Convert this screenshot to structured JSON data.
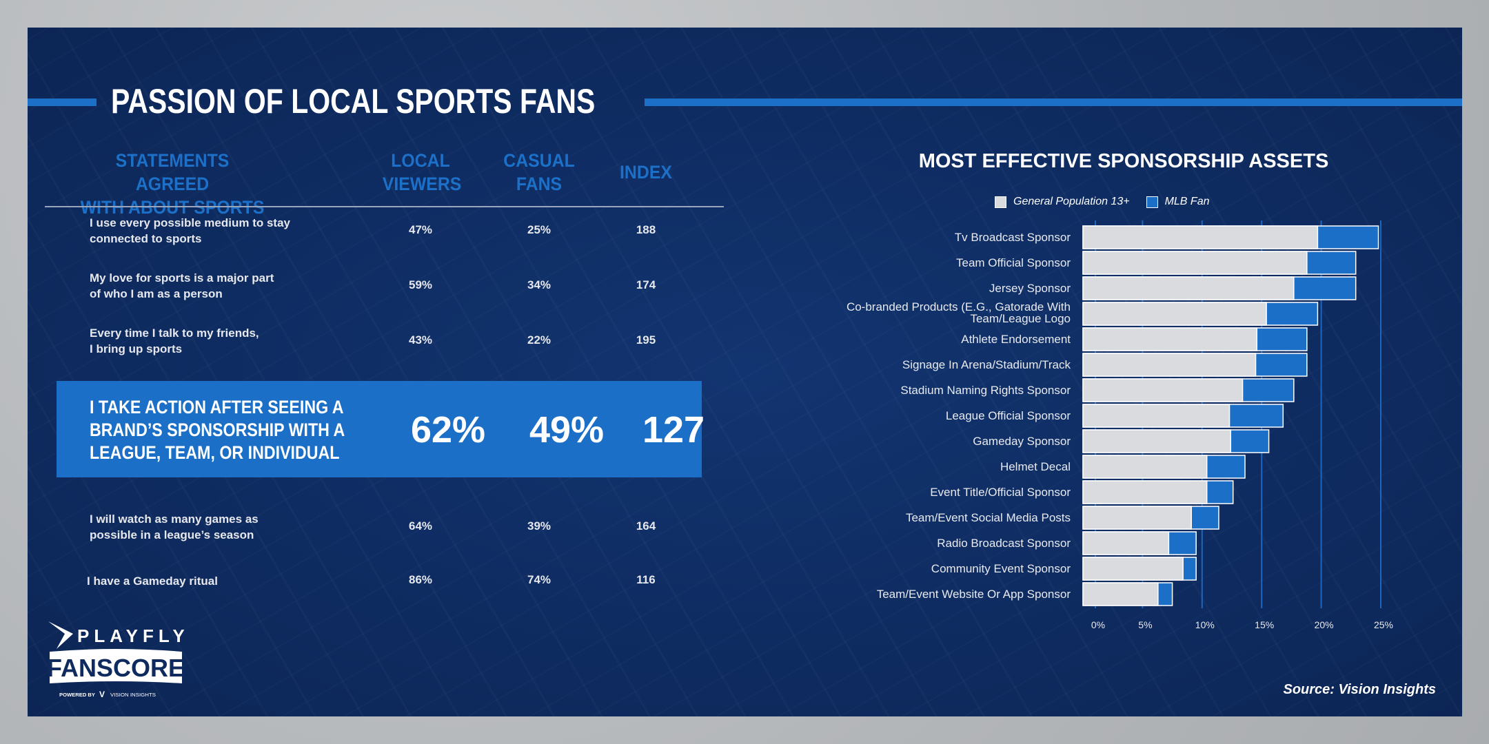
{
  "title": "PASSION OF LOCAL SPORTS FANS",
  "table": {
    "headers": {
      "statement": [
        "STATEMENTS AGREED",
        "WITH ABOUT SPORTS"
      ],
      "local": [
        "LOCAL",
        "VIEWERS"
      ],
      "casual": [
        "CASUAL",
        "FANS"
      ],
      "index": "INDEX"
    },
    "rows": [
      {
        "statement": [
          "I use every possible medium to stay",
          "connected to sports"
        ],
        "local": "47%",
        "casual": "25%",
        "index": "188"
      },
      {
        "statement": [
          "My love for sports is a major part",
          "of who I am as a person"
        ],
        "local": "59%",
        "casual": "34%",
        "index": "174"
      },
      {
        "statement": [
          "Every time I talk to my friends,",
          "I bring up sports"
        ],
        "local": "43%",
        "casual": "22%",
        "index": "195"
      },
      {
        "statement": [
          "I will watch as many games as",
          "possible in a league’s season"
        ],
        "local": "64%",
        "casual": "39%",
        "index": "164"
      },
      {
        "statement": [
          "I have a Gameday ritual",
          ""
        ],
        "local": "86%",
        "casual": "74%",
        "index": "116"
      }
    ],
    "highlight": {
      "statement": [
        "I TAKE ACTION AFTER SEEING A",
        "BRAND’S SPONSORSHIP WITH A",
        "LEAGUE, TEAM, OR INDIVIDUAL"
      ],
      "local": "62%",
      "casual": "49%",
      "index": "127"
    }
  },
  "logo": {
    "brand": "PLAYFLY",
    "product": "FANSCORE",
    "powered": "POWERED BY",
    "partner": "VISION INSIGHTS"
  },
  "source": "Source: Vision Insights",
  "colors": {
    "accent": "#1c70c8",
    "navy": "#0e2a5e",
    "gray_bar": "#d9dbdf"
  },
  "chart_data": {
    "type": "bar",
    "orientation": "horizontal",
    "title": "MOST EFFECTIVE SPONSORSHIP ASSETS",
    "categories": [
      "Tv Broadcast Sponsor",
      "Team Official Sponsor",
      "Jersey Sponsor",
      "Co-branded Products (E.G., Gatorade With Team/League Logo",
      "Athlete Endorsement",
      "Signage In Arena/Stadium/Track",
      "Stadium Naming Rights Sponsor",
      "League Official Sponsor",
      "Gameday Sponsor",
      "Helmet Decal",
      "Event Title/Official Sponsor",
      "Team/Event Social Media Posts",
      "Radio Broadcast Sponsor",
      "Community Event Sponsor",
      "Team/Event Website Or App Sponsor"
    ],
    "series": [
      {
        "name": "General Population 13+",
        "color": "#d9dbdf",
        "values": [
          19.7,
          18.8,
          17.7,
          15.4,
          14.6,
          14.5,
          13.4,
          12.3,
          12.4,
          10.4,
          10.4,
          9.1,
          7.2,
          8.4,
          6.3
        ]
      },
      {
        "name": "MLB Fan",
        "color": "#1b6fc6",
        "values": [
          24.8,
          22.9,
          22.9,
          19.7,
          18.8,
          18.8,
          17.7,
          16.8,
          15.6,
          13.6,
          12.6,
          11.4,
          9.5,
          9.5,
          7.5
        ]
      }
    ],
    "xticks": [
      "0%",
      "5%",
      "10%",
      "15%",
      "20%",
      "25%"
    ],
    "xlim": [
      0,
      25
    ],
    "legend": "top",
    "grid": true
  }
}
